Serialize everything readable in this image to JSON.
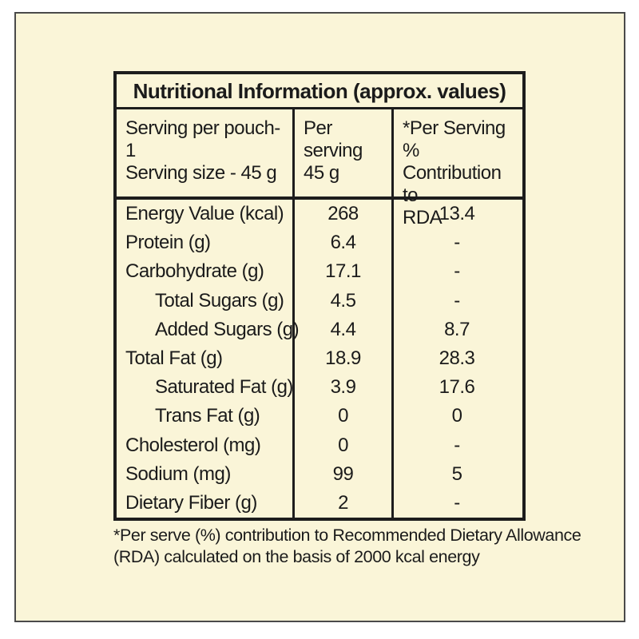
{
  "page": {
    "background_color": "#ffffff",
    "panel_color": "#faf5d8",
    "border_color": "#1d1d1d"
  },
  "table": {
    "title": "Nutritional Information (approx. values)",
    "columns": [
      {
        "header_lines": [
          "Serving per pouch-1",
          "Serving size - 45 g"
        ]
      },
      {
        "header_lines": [
          "Per serving",
          "45 g"
        ]
      },
      {
        "header_lines": [
          "*Per Serving %",
          "Contribution to",
          "RDA"
        ]
      }
    ],
    "rows": [
      {
        "label": "Energy Value (kcal)",
        "indent": false,
        "per_serving": "268",
        "rda": "13.4"
      },
      {
        "label": "Protein (g)",
        "indent": false,
        "per_serving": "6.4",
        "rda": "-"
      },
      {
        "label": "Carbohydrate (g)",
        "indent": false,
        "per_serving": "17.1",
        "rda": "-"
      },
      {
        "label": "Total Sugars (g)",
        "indent": true,
        "per_serving": "4.5",
        "rda": "-"
      },
      {
        "label": "Added Sugars (g)",
        "indent": true,
        "per_serving": "4.4",
        "rda": "8.7"
      },
      {
        "label": "Total Fat (g)",
        "indent": false,
        "per_serving": "18.9",
        "rda": "28.3"
      },
      {
        "label": "Saturated Fat (g)",
        "indent": true,
        "per_serving": "3.9",
        "rda": "17.6"
      },
      {
        "label": "Trans Fat (g)",
        "indent": true,
        "per_serving": "0",
        "rda": "0"
      },
      {
        "label": "Cholesterol (mg)",
        "indent": false,
        "per_serving": "0",
        "rda": "-"
      },
      {
        "label": "Sodium (mg)",
        "indent": false,
        "per_serving": "99",
        "rda": "5"
      },
      {
        "label": "Dietary Fiber (g)",
        "indent": false,
        "per_serving": "2",
        "rda": "-"
      }
    ],
    "footnote_lines": [
      "*Per serve (%) contribution to Recommended Dietary Allowance",
      "(RDA) calculated on the basis of 2000 kcal energy"
    ]
  }
}
